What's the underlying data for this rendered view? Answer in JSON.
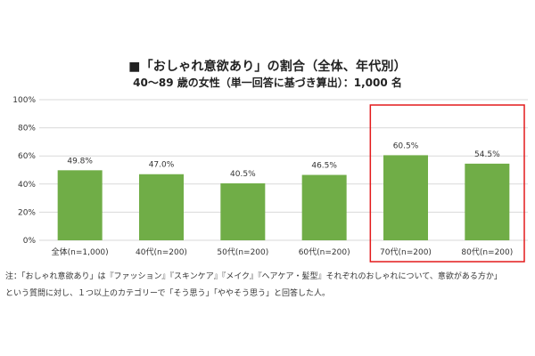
{
  "chart_data": {
    "type": "bar",
    "title": "■「おしゃれ意欲あり」の割合（全体、年代別）",
    "subtitle": "40～89 歳の女性（単一回答に基づき算出）：1,000 名",
    "categories": [
      "全体(n=1,000)",
      "40代(n=200)",
      "50代(n=200)",
      "60代(n=200)",
      "70代(n=200)",
      "80代(n=200)"
    ],
    "values": [
      49.8,
      47.0,
      40.5,
      46.5,
      60.5,
      54.5
    ],
    "value_labels": [
      "49.8%",
      "47.0%",
      "40.5%",
      "46.5%",
      "60.5%",
      "54.5%"
    ],
    "yticks": [
      "0%",
      "20%",
      "40%",
      "60%",
      "80%",
      "100%"
    ],
    "ylim": [
      0,
      100
    ],
    "grid": true,
    "highlight": [
      "70代(n=200)",
      "80代(n=200)"
    ],
    "colors": {
      "bar": "#70ad47",
      "highlight_box": "#e31a1c",
      "grid": "#d9d9d9"
    }
  },
  "notes": {
    "line1": "注：「おしゃれ意欲あり」は『ファッション』『スキンケア』『メイク』『ヘアケア・髪型』それぞれのおしゃれについて、意欲がある方か」",
    "line2": "という質問に対し、１つ以上のカテゴリーで「そう思う」「ややそう思う」と回答した人。"
  }
}
